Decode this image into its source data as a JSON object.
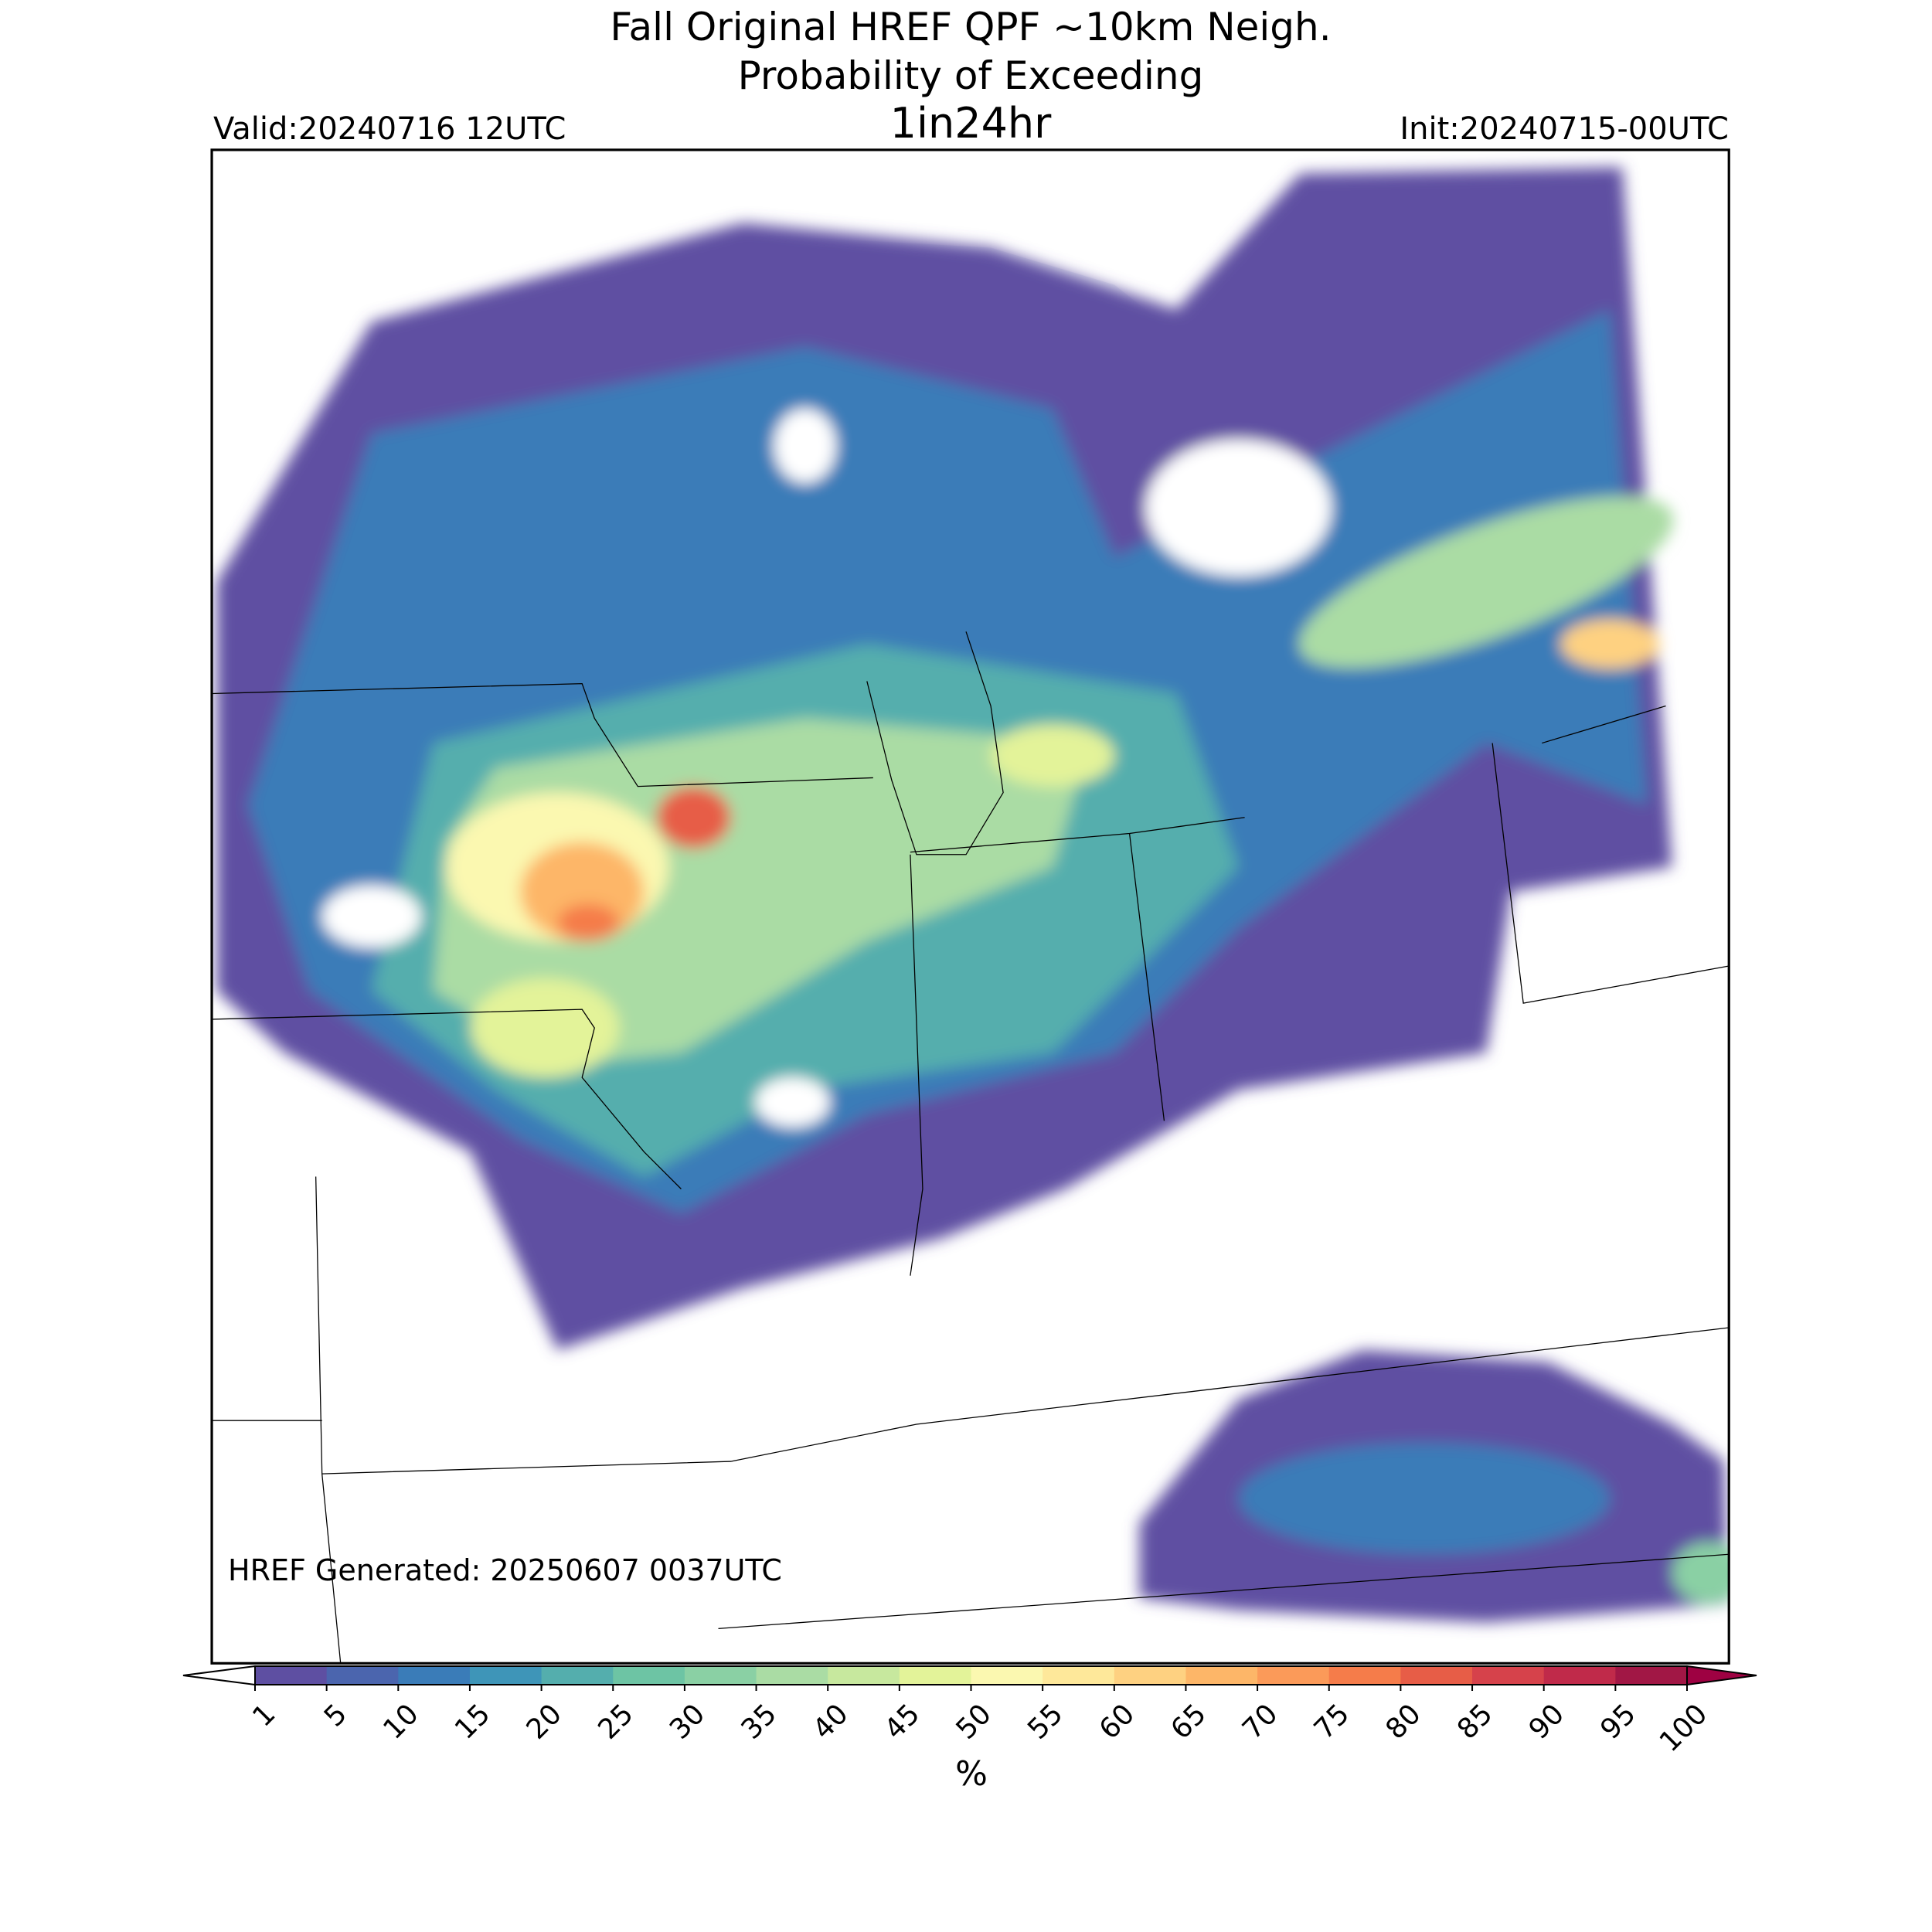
{
  "title": [
    "Fall Original HREF QPF ~10km Neigh.",
    "Probability of Exceeding",
    "1in24hr"
  ],
  "valid": "Valid:20240716 12UTC",
  "init": "Init:20240715-00UTC",
  "generated": "HREF Generated: 20250607 0037UTC",
  "colorbar": {
    "label": "%",
    "levels": [
      1,
      5,
      10,
      15,
      20,
      25,
      30,
      35,
      40,
      45,
      50,
      55,
      60,
      65,
      70,
      75,
      80,
      85,
      90,
      95,
      100
    ],
    "colors": [
      "#5e4fa2",
      "#4b65ae",
      "#3a7cb8",
      "#3e95b8",
      "#54aead",
      "#6dc4a4",
      "#8ad0a4",
      "#aadca4",
      "#c7e89e",
      "#e3f399",
      "#fbf8b0",
      "#fee89a",
      "#fed181",
      "#fdb668",
      "#fb9a59",
      "#f57c4a",
      "#e75d47",
      "#d6424b",
      "#c02a4a",
      "#a11745"
    ],
    "under": "#ffffff",
    "over": "#9e0142"
  }
}
